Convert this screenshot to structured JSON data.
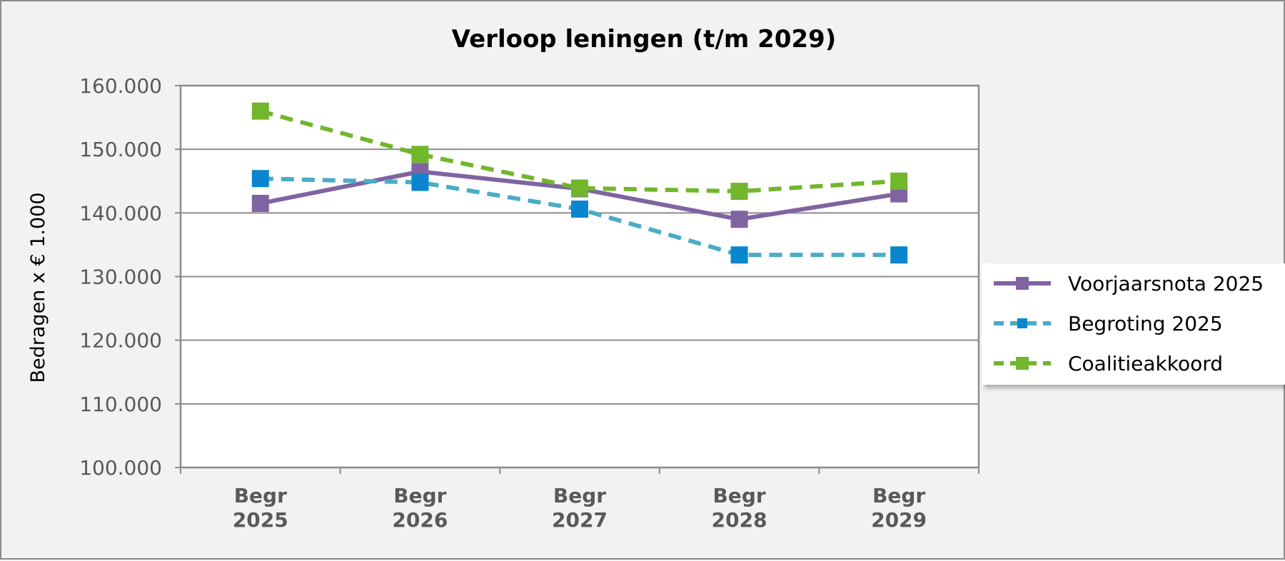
{
  "chart_data": {
    "type": "line",
    "title": "Verloop leningen (t/m 2029)",
    "xlabel": "",
    "ylabel": "Bedragen x € 1.000",
    "categories": [
      "Begr 2025",
      "Begr 2026",
      "Begr 2027",
      "Begr 2028",
      "Begr 2029"
    ],
    "category_lines": [
      [
        "Begr",
        "2025"
      ],
      [
        "Begr",
        "2026"
      ],
      [
        "Begr",
        "2027"
      ],
      [
        "Begr",
        "2028"
      ],
      [
        "Begr",
        "2029"
      ]
    ],
    "ylim": [
      100000,
      160000
    ],
    "yticks": [
      100000,
      110000,
      120000,
      130000,
      140000,
      150000,
      160000
    ],
    "ytick_labels": [
      "100.000",
      "110.000",
      "120.000",
      "130.000",
      "140.000",
      "150.000",
      "160.000"
    ],
    "grid": true,
    "legend_position": "right",
    "series": [
      {
        "name": "Voorjaarsnota 2025",
        "values": [
          141500,
          146500,
          143800,
          139000,
          143000
        ],
        "color": "#8064a2",
        "style": "solid"
      },
      {
        "name": "Begroting 2025",
        "values": [
          145400,
          144800,
          140600,
          133400,
          133400
        ],
        "color": "#4bacc6",
        "marker_color": "#0a86cf",
        "style": "dashed"
      },
      {
        "name": "Coalitieakkoord",
        "values": [
          156000,
          149200,
          143900,
          143400,
          145000
        ],
        "color": "#72b62d",
        "style": "dashed"
      }
    ]
  }
}
